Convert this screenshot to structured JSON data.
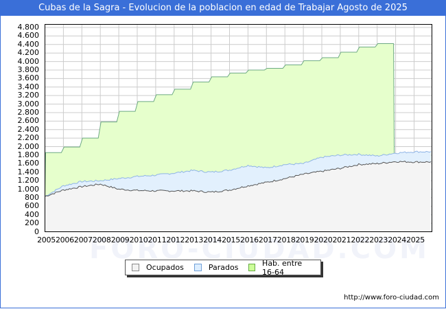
{
  "title": "Cubas de la Sagra - Evolucion de la poblacion en edad de Trabajar Agosto de 2025",
  "footer": "http://www.foro-ciudad.com",
  "watermark": "FORO-CIUDAD.COM",
  "legend": [
    {
      "label": "Ocupados",
      "color": "#f2f2f2",
      "border": "#888888"
    },
    {
      "label": "Parados",
      "color": "#ddeeff",
      "border": "#6f9fd8"
    },
    {
      "label": "Hab. entre 16-64",
      "color": "#ccff99",
      "border": "#66aa44"
    }
  ],
  "colors": {
    "header": "#3a6fd8",
    "ocupados_fill": "#f4f4f4",
    "ocupados_line": "#555555",
    "parados_fill": "#e2f0fd",
    "parados_line": "#8fb4e6",
    "hab_fill": "#e6ffcc",
    "hab_line": "#6daa83",
    "grid": "#cccccc"
  },
  "chart_data": {
    "type": "area",
    "title": "Cubas de la Sagra - Evolucion de la poblacion en edad de Trabajar Agosto de 2025",
    "xlabel": "",
    "ylabel": "",
    "ylim": [
      0,
      4800
    ],
    "yticks": [
      0,
      200,
      400,
      600,
      800,
      1000,
      1200,
      1400,
      1600,
      1800,
      2000,
      2200,
      2400,
      2600,
      2800,
      3000,
      3200,
      3400,
      3600,
      3800,
      4000,
      4200,
      4400,
      4600,
      4800
    ],
    "ytick_labels": [
      "0",
      "200",
      "400",
      "600",
      "800",
      "1.000",
      "1.200",
      "1.400",
      "1.600",
      "1.800",
      "2.000",
      "2.200",
      "2.400",
      "2.600",
      "2.800",
      "3.000",
      "3.200",
      "3.400",
      "3.600",
      "3.800",
      "4.000",
      "4.200",
      "4.400",
      "4.600",
      "4.800"
    ],
    "categories": [
      "2005",
      "2006",
      "2007",
      "2008",
      "2009",
      "2010",
      "2011",
      "2012",
      "2013",
      "2014",
      "2015",
      "2016",
      "2017",
      "2018",
      "2019",
      "2020",
      "2021",
      "2022",
      "2023",
      "2024",
      "2025"
    ],
    "grid": true,
    "legend_position": "bottom",
    "series": [
      {
        "name": "Hab. entre 16-64",
        "values": [
          1860,
          1990,
          2200,
          2580,
          2830,
          3060,
          3220,
          3350,
          3520,
          3640,
          3730,
          3800,
          3840,
          3920,
          4020,
          4090,
          4220,
          4340,
          4420,
          null,
          null
        ]
      },
      {
        "name": "Parados",
        "values": [
          830,
          1080,
          1180,
          1200,
          1250,
          1300,
          1330,
          1380,
          1440,
          1400,
          1450,
          1560,
          1500,
          1580,
          1600,
          1750,
          1800,
          1820,
          1780,
          1850,
          1880
        ]
      },
      {
        "name": "Ocupados",
        "values": [
          830,
          980,
          1060,
          1120,
          1000,
          970,
          960,
          960,
          960,
          930,
          980,
          1080,
          1160,
          1250,
          1350,
          1420,
          1490,
          1580,
          1600,
          1650,
          1640
        ]
      }
    ]
  }
}
